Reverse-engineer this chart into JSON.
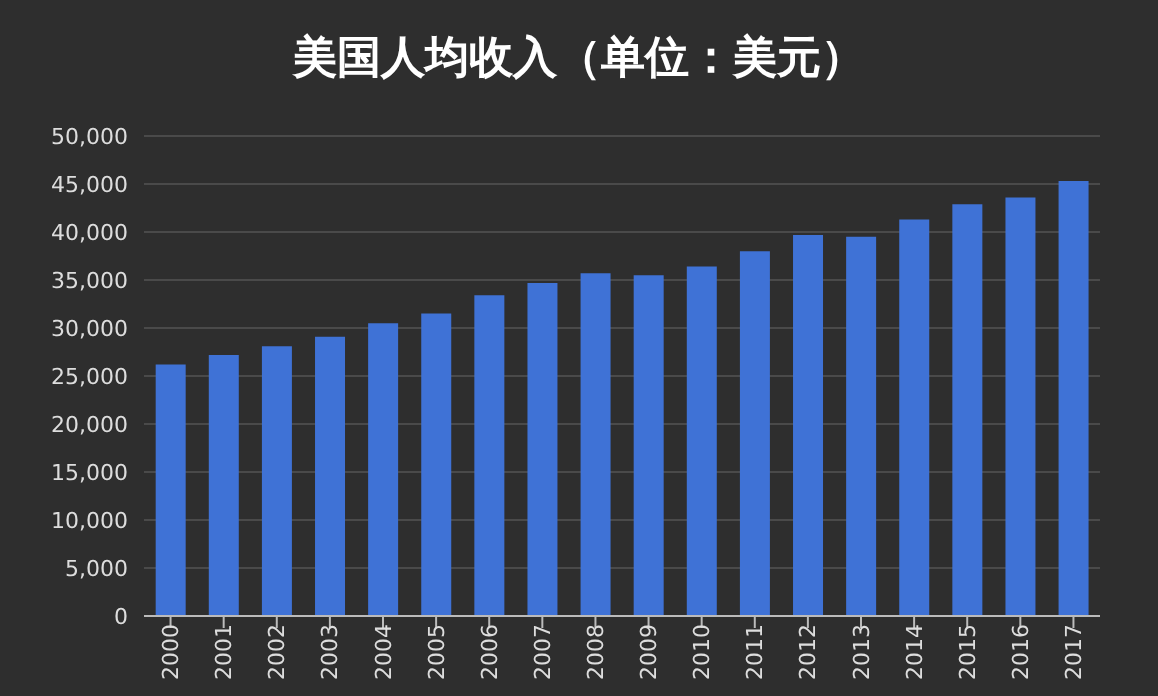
{
  "chart_data": {
    "type": "bar",
    "title": "美国人均收入（单位：美元）",
    "categories": [
      "2000",
      "2001",
      "2002",
      "2003",
      "2004",
      "2005",
      "2006",
      "2007",
      "2008",
      "2009",
      "2010",
      "2011",
      "2012",
      "2013",
      "2014",
      "2015",
      "2016",
      "2017"
    ],
    "values": [
      26200,
      27200,
      28100,
      29100,
      30500,
      31500,
      33400,
      34700,
      35700,
      35500,
      36400,
      38000,
      39700,
      39500,
      41300,
      42900,
      43600,
      45300
    ],
    "color": "#3f72d6",
    "ylim": [
      0,
      50000
    ],
    "yticks": [
      0,
      {
        "value": 5000,
        "label": "5,000"
      },
      {
        "value": 10000,
        "label": "10,000"
      },
      {
        "value": 15000,
        "label": "15,000"
      },
      {
        "value": 20000,
        "label": "20,000"
      },
      {
        "value": 25000,
        "label": "25,000"
      },
      {
        "value": 30000,
        "label": "30,000"
      },
      {
        "value": 35000,
        "label": "35,000"
      },
      {
        "value": 40000,
        "label": "40,000"
      },
      {
        "value": 45000,
        "label": "45,000"
      },
      {
        "value": 50000,
        "label": "50,000"
      }
    ],
    "grid": "y"
  }
}
